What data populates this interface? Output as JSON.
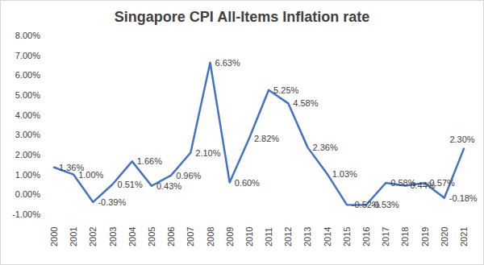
{
  "chart_data": {
    "type": "line",
    "title": "Singapore CPI All-Items Inflation rate",
    "categories": [
      "2000",
      "2001",
      "2002",
      "2003",
      "2004",
      "2005",
      "2006",
      "2007",
      "2008",
      "2009",
      "2010",
      "2011",
      "2012",
      "2013",
      "2014",
      "2015",
      "2016",
      "2017",
      "2018",
      "2019",
      "2020",
      "2021"
    ],
    "values": [
      1.36,
      1.0,
      -0.39,
      0.51,
      1.66,
      0.43,
      0.96,
      2.1,
      6.63,
      0.6,
      2.82,
      5.25,
      4.58,
      2.36,
      1.03,
      -0.52,
      -0.53,
      0.58,
      0.44,
      0.57,
      -0.18,
      2.3
    ],
    "value_labels": [
      "1.36%",
      "1.00%",
      "-0.39%",
      "0.51%",
      "1.66%",
      "0.43%",
      "0.96%",
      "2.10%",
      "6.63%",
      "0.60%",
      "2.82%",
      "5.25%",
      "4.58%",
      "2.36%",
      "1.03%",
      "-0.52%",
      "-0.53%",
      "0.58%",
      "0.44%",
      "0.57%",
      "-0.18%",
      "2.30%"
    ],
    "color": "#4472c4",
    "ylim": [
      -1,
      8
    ],
    "yticks": [
      {
        "value": -1,
        "label": "-1.00%"
      },
      {
        "value": 0,
        "label": "0.00%"
      },
      {
        "value": 1,
        "label": "1.00%"
      },
      {
        "value": 2,
        "label": "2.00%"
      },
      {
        "value": 3,
        "label": "3.00%"
      },
      {
        "value": 4,
        "label": "4.00%"
      },
      {
        "value": 5,
        "label": "5.00%"
      },
      {
        "value": 6,
        "label": "6.00%"
      },
      {
        "value": 7,
        "label": "7.00%"
      },
      {
        "value": 8,
        "label": "8.00%"
      }
    ],
    "grid": false,
    "data_labels": true
  }
}
